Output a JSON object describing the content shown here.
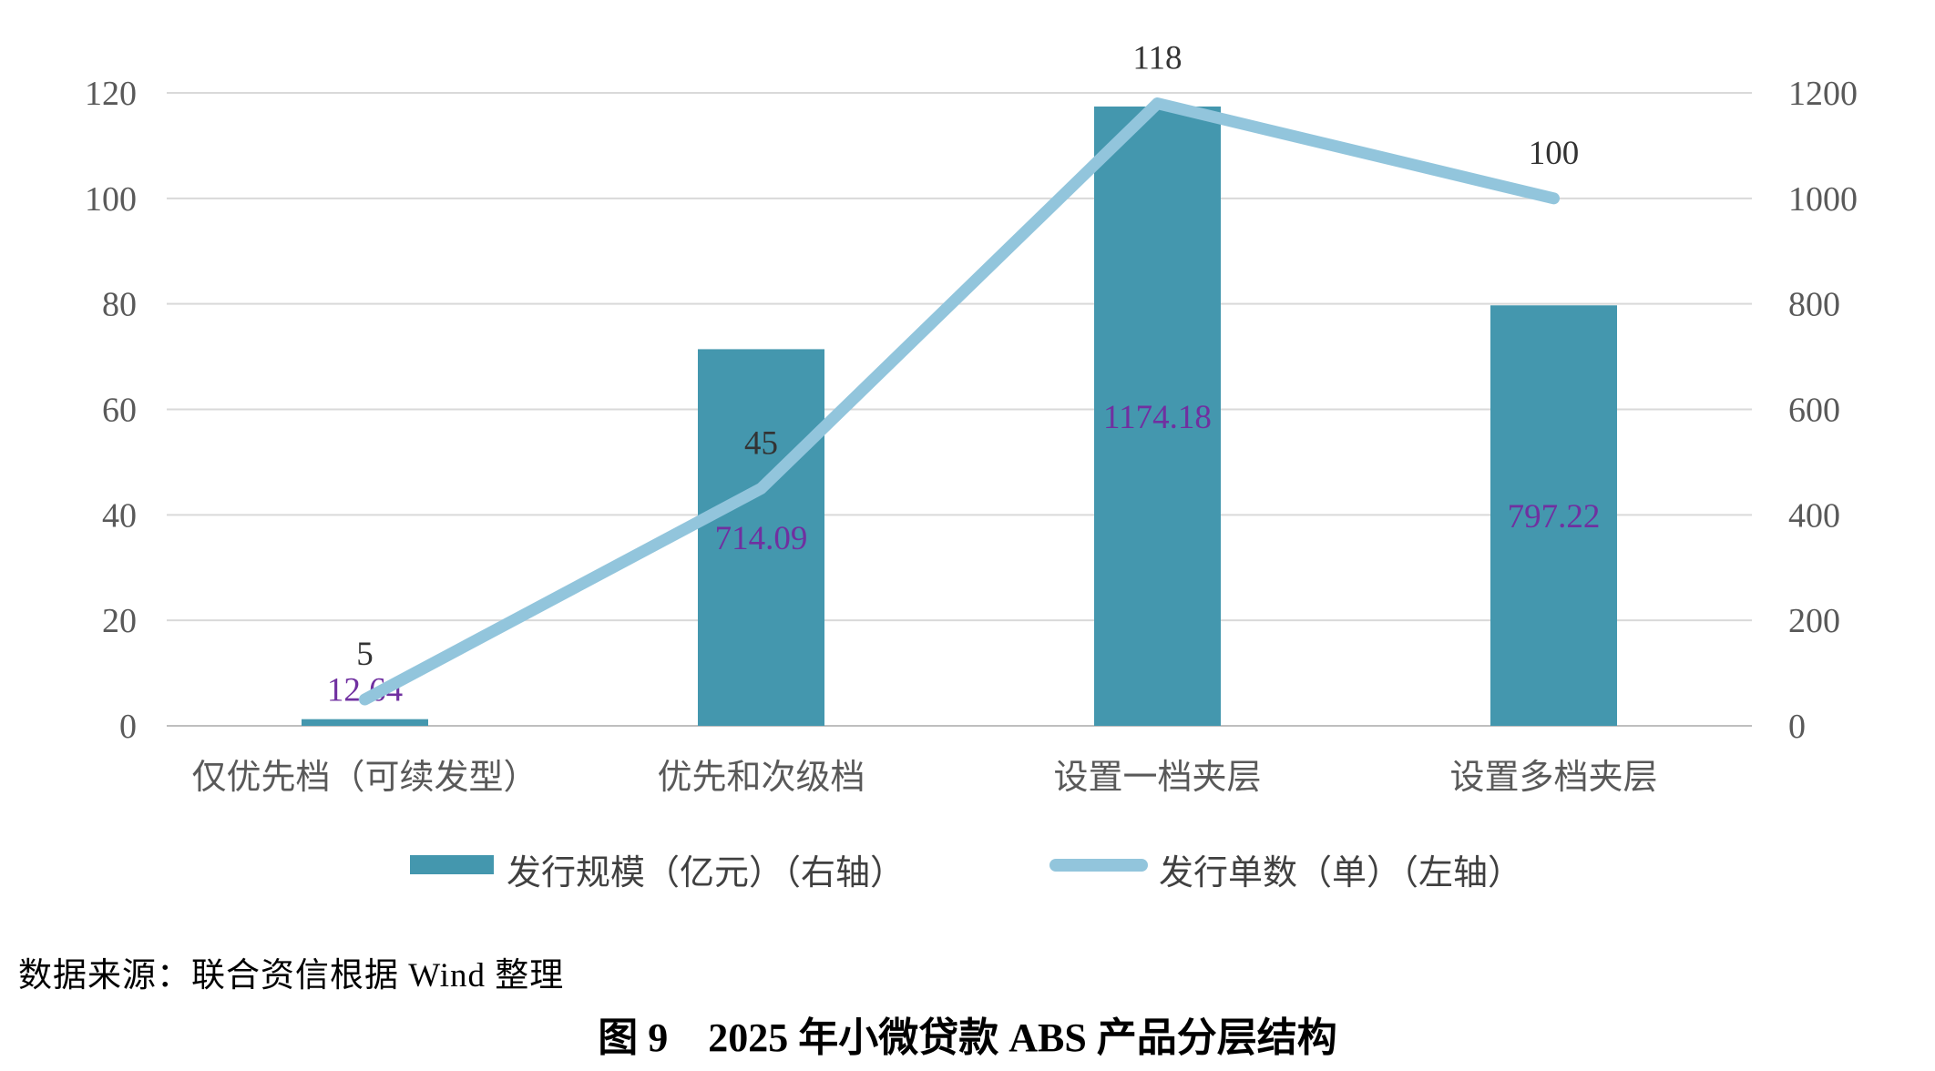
{
  "chart_data": {
    "type": "combo-bar-line",
    "categories": [
      "仅优先档（可续发型）",
      "优先和次级档",
      "设置一档夹层",
      "设置多档夹层"
    ],
    "series": [
      {
        "name": "发行规模（亿元）（右轴）",
        "type": "bar",
        "axis": "right",
        "values": [
          12.64,
          714.09,
          1174.18,
          797.22
        ],
        "labels": [
          "12.64",
          "714.09",
          "1174.18",
          "797.22"
        ],
        "color": "#4497AE",
        "label_color": "#7030A0"
      },
      {
        "name": "发行单数（单）（左轴）",
        "type": "line",
        "axis": "left",
        "values": [
          5,
          45,
          118,
          100
        ],
        "labels": [
          "5",
          "45",
          "118",
          "100"
        ],
        "color": "#92C5DC",
        "label_color": "#333333"
      }
    ],
    "left_axis": {
      "min": 0,
      "max": 120,
      "step": 20,
      "ticks": [
        "0",
        "20",
        "40",
        "60",
        "80",
        "100",
        "120"
      ]
    },
    "right_axis": {
      "min": 0,
      "max": 1200,
      "step": 200,
      "ticks": [
        "0",
        "200",
        "400",
        "600",
        "800",
        "1000",
        "1200"
      ]
    },
    "grid": true,
    "legend_position": "bottom",
    "styles": {
      "gridline_color": "#D9D9D9",
      "baseline_color": "#BFBFBF",
      "tick_color": "#595959",
      "category_color": "#595959",
      "legend_text_color": "#404040",
      "background": "#FFFFFF"
    }
  },
  "source_note": "数据来源：联合资信根据 Wind 整理",
  "figure_title": "图 9　2025 年小微贷款 ABS 产品分层结构"
}
